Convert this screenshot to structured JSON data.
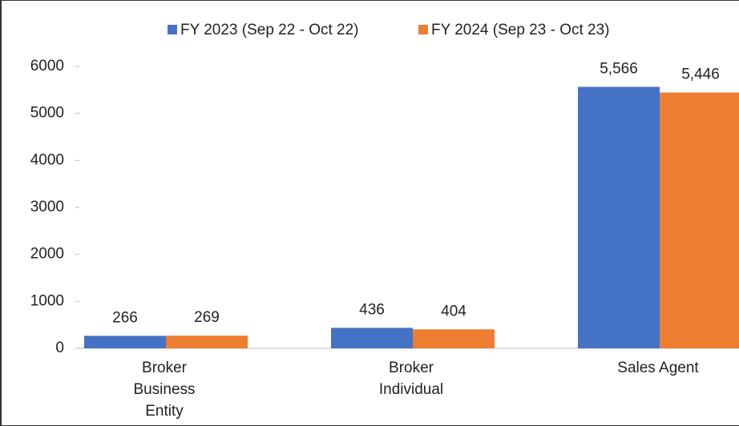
{
  "chart_data": {
    "type": "bar",
    "categories": [
      "Broker Business Entity",
      "Broker Individual",
      "Sales Agent"
    ],
    "series": [
      {
        "name": "FY 2023 (Sep 22 - Oct 22)",
        "color": "#4472c4",
        "values": [
          266,
          436,
          5566
        ],
        "value_labels": [
          "266",
          "436",
          "5,566"
        ]
      },
      {
        "name": "FY 2024 (Sep 23 - Oct 23)",
        "color": "#ed7d31",
        "values": [
          269,
          404,
          5446
        ],
        "value_labels": [
          "269",
          "404",
          "5,446"
        ]
      }
    ],
    "ylim": [
      0,
      6000
    ],
    "yticks": [
      0,
      1000,
      2000,
      3000,
      4000,
      5000,
      6000
    ],
    "legend": "top"
  }
}
